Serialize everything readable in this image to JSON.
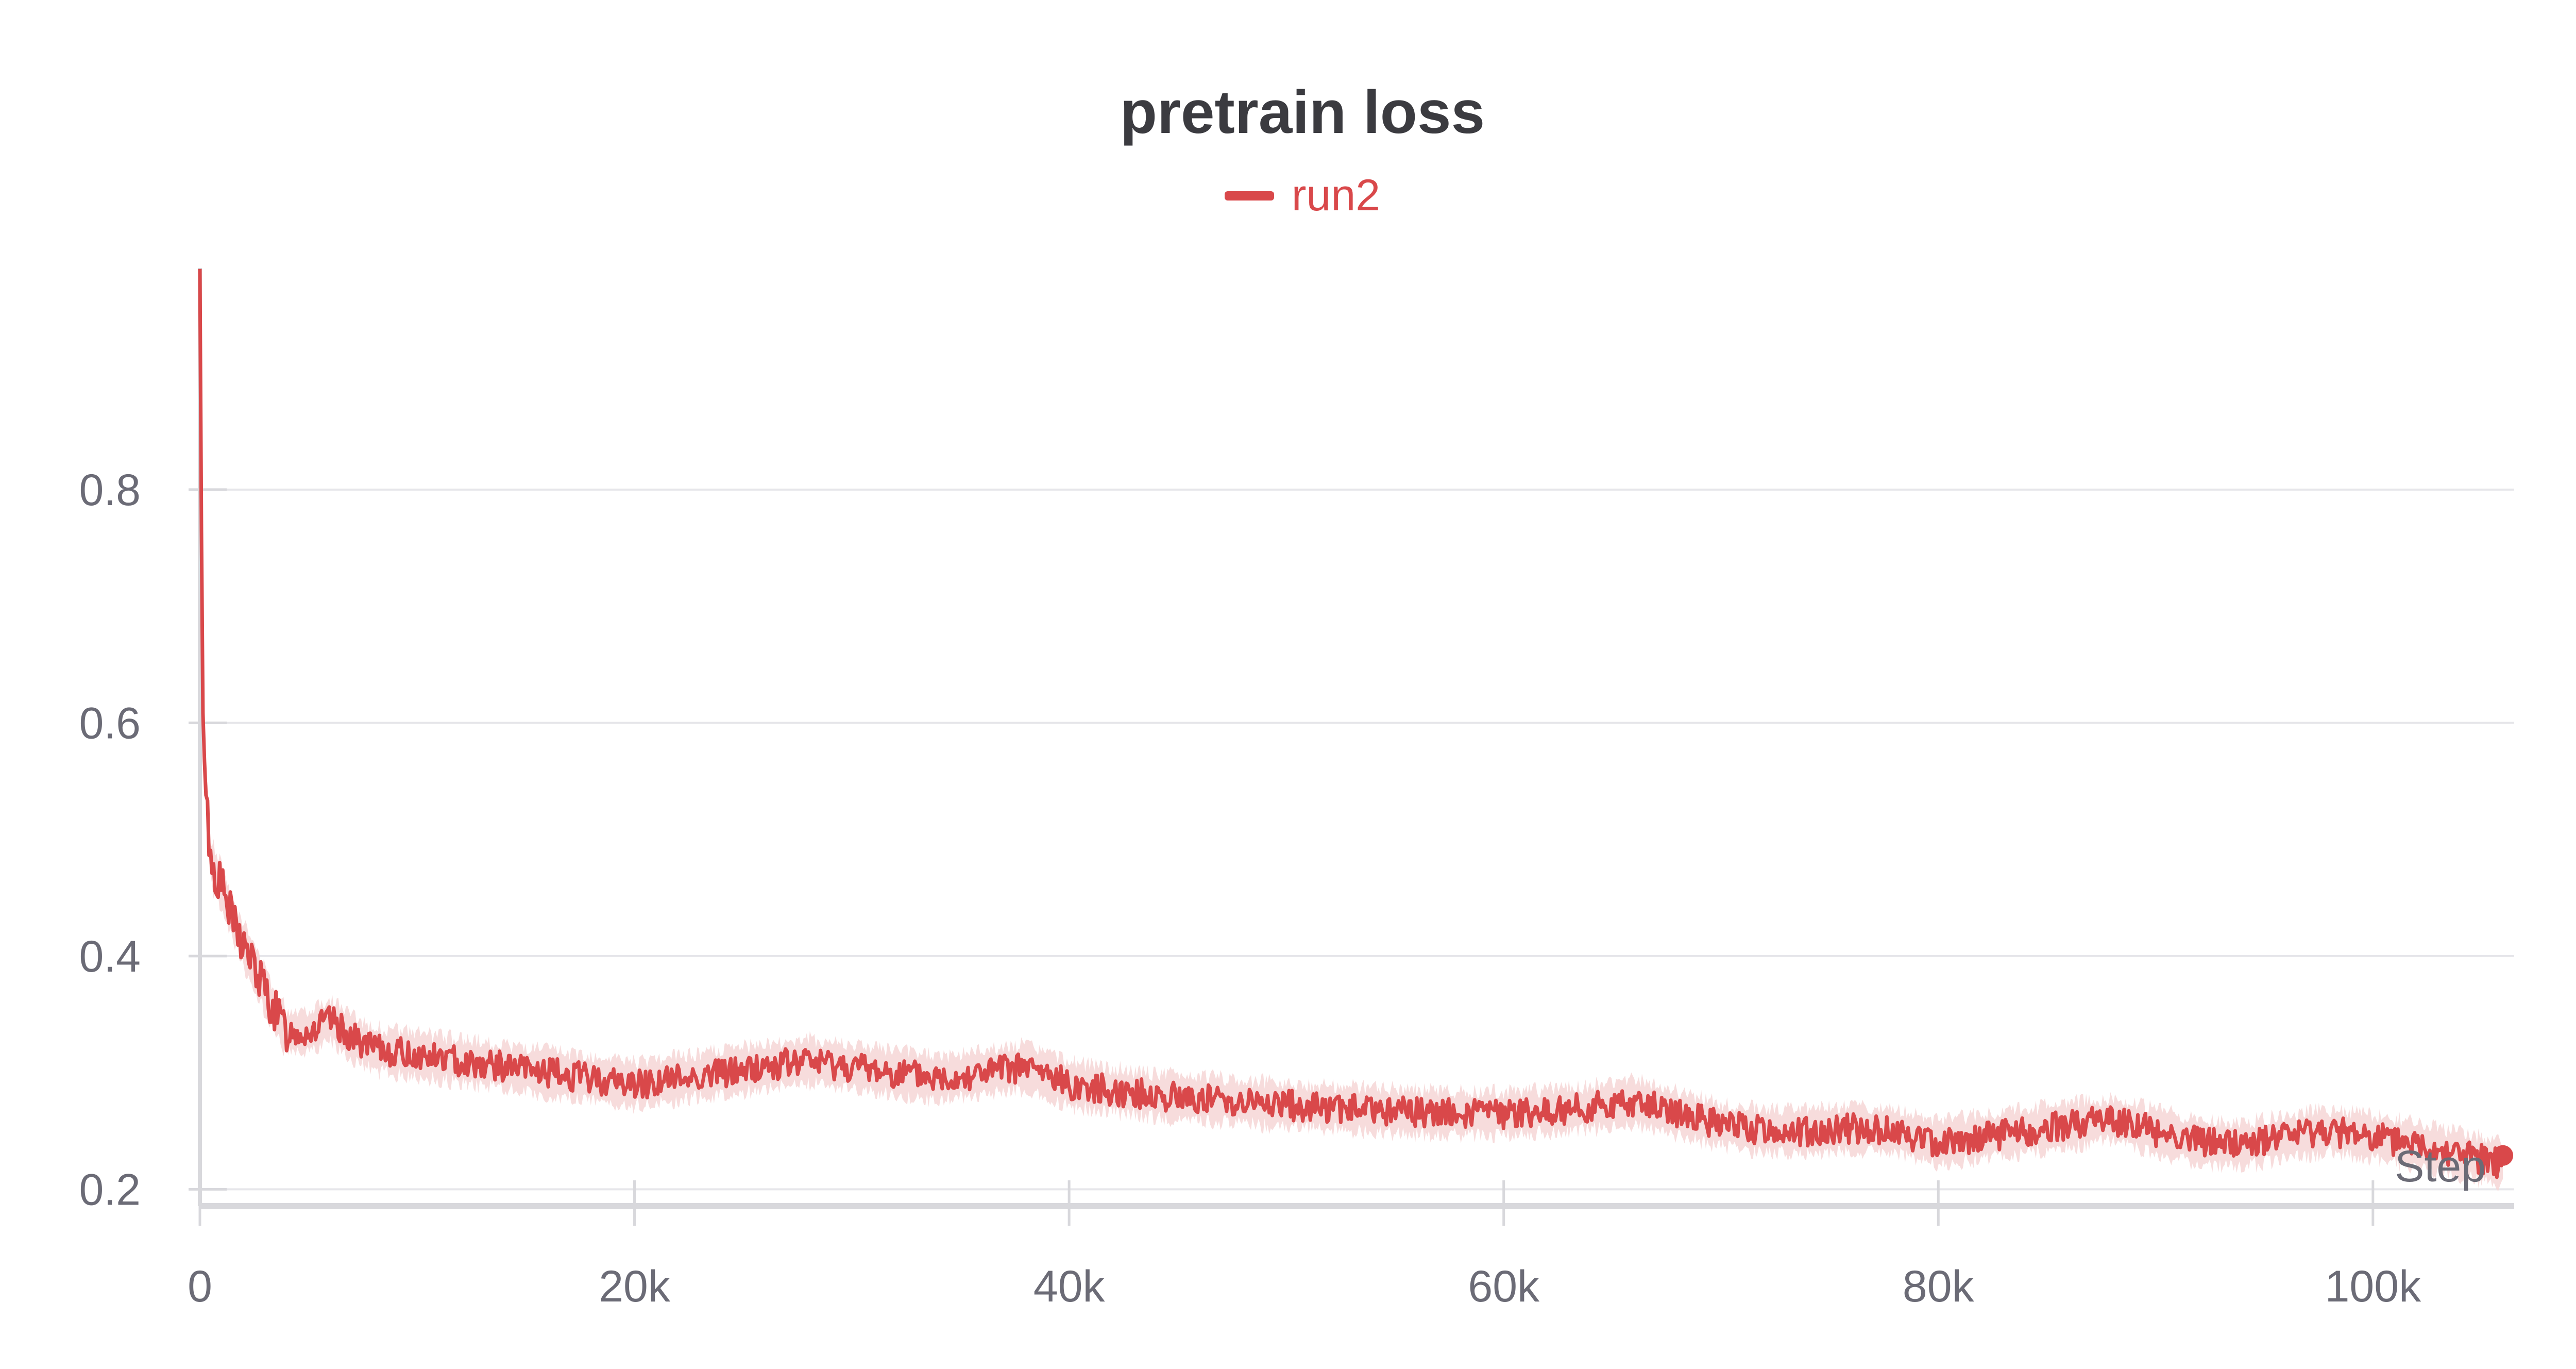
{
  "chart_data": {
    "type": "line",
    "title": "pretrain loss",
    "xlabel": "Step",
    "ylabel": "",
    "xlim": [
      0,
      106500
    ],
    "ylim": [
      0.19,
      0.99
    ],
    "xticks": [
      0,
      20000,
      40000,
      60000,
      80000,
      100000
    ],
    "xtick_labels": [
      "0",
      "20k",
      "40k",
      "60k",
      "80k",
      "100k"
    ],
    "yticks": [
      0.2,
      0.4,
      0.6,
      0.8
    ],
    "ytick_labels": [
      "0.2",
      "0.4",
      "0.6",
      "0.8"
    ],
    "grid": true,
    "legend_position": "top-center",
    "series": [
      {
        "name": "run2",
        "color": "#d9484a",
        "band_color": "#f6d6d6",
        "x": [
          0,
          100,
          250,
          500,
          1000,
          1500,
          2000,
          2500,
          3000,
          3500,
          4000,
          5000,
          6000,
          7000,
          8000,
          10000,
          12000,
          14000,
          16000,
          18000,
          20000,
          22000,
          24000,
          26000,
          28000,
          30000,
          32000,
          34000,
          36000,
          38000,
          40000,
          42000,
          44000,
          46000,
          48000,
          50000,
          52000,
          54000,
          56000,
          58000,
          60000,
          62000,
          64000,
          66000,
          68000,
          70000,
          72000,
          74000,
          76000,
          78000,
          80000,
          82000,
          84000,
          86000,
          88000,
          90000,
          92000,
          94000,
          96000,
          98000,
          100000,
          102000,
          104000,
          106000
        ],
        "y": [
          0.98,
          0.65,
          0.55,
          0.48,
          0.46,
          0.43,
          0.41,
          0.39,
          0.37,
          0.35,
          0.335,
          0.335,
          0.345,
          0.33,
          0.32,
          0.315,
          0.31,
          0.305,
          0.3,
          0.295,
          0.29,
          0.295,
          0.3,
          0.305,
          0.31,
          0.305,
          0.3,
          0.295,
          0.3,
          0.305,
          0.29,
          0.285,
          0.28,
          0.278,
          0.275,
          0.272,
          0.27,
          0.268,
          0.266,
          0.265,
          0.265,
          0.267,
          0.27,
          0.275,
          0.265,
          0.255,
          0.25,
          0.25,
          0.252,
          0.25,
          0.24,
          0.245,
          0.25,
          0.255,
          0.26,
          0.25,
          0.24,
          0.238,
          0.245,
          0.25,
          0.245,
          0.238,
          0.23,
          0.222
        ]
      }
    ]
  }
}
